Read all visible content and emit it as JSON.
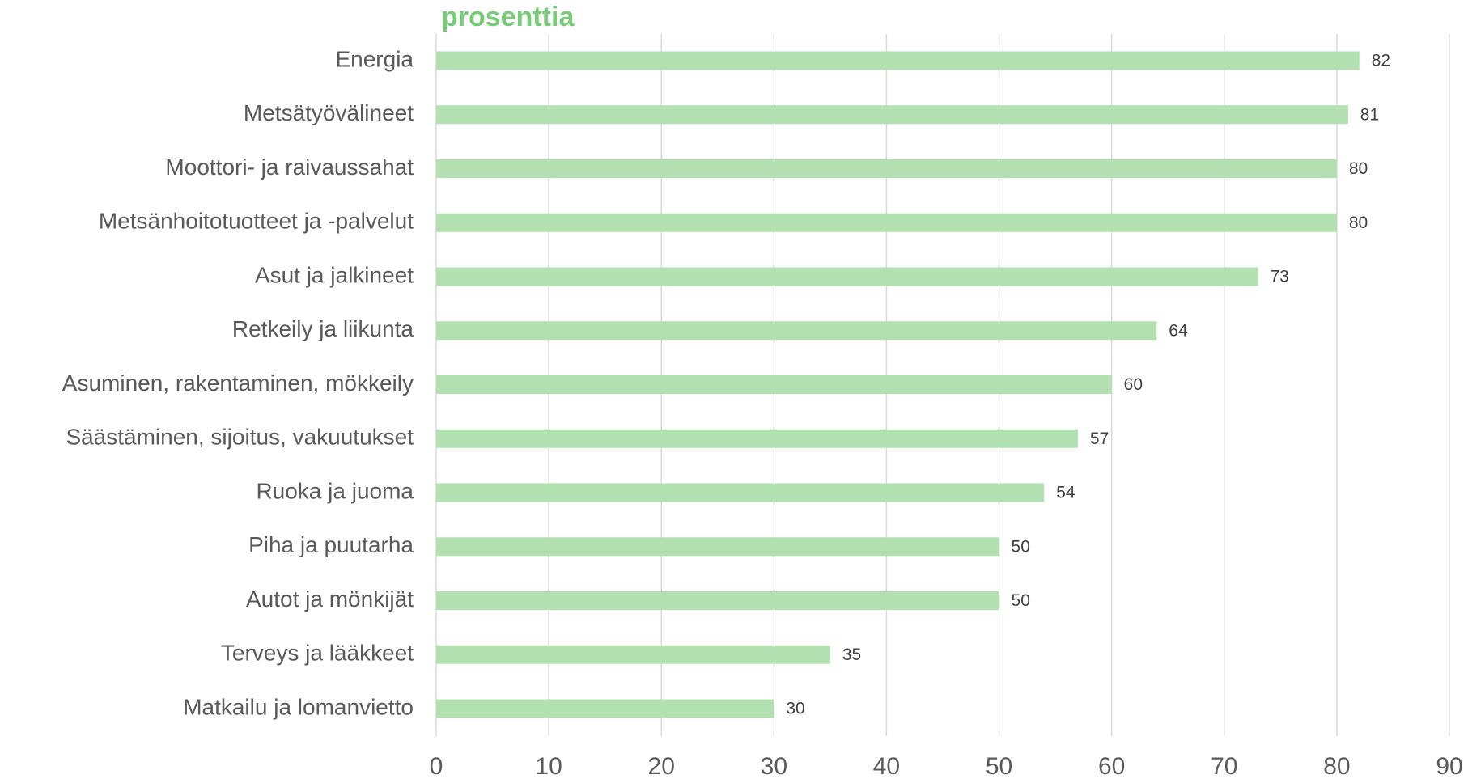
{
  "chart_data": {
    "type": "bar",
    "orientation": "horizontal",
    "title": "prosenttia",
    "categories": [
      "Energia",
      "Metsätyövälineet",
      "Moottori- ja raivaussahat",
      "Metsänhoitotuotteet ja -palvelut",
      "Asut ja jalkineet",
      "Retkeily ja liikunta",
      "Asuminen, rakentaminen, mökkeily",
      "Säästäminen, sijoitus, vakuutukset",
      "Ruoka ja juoma",
      "Piha ja puutarha",
      "Autot ja mönkijät",
      "Terveys ja lääkkeet",
      "Matkailu ja lomanvietto"
    ],
    "values": [
      82,
      81,
      80,
      80,
      73,
      64,
      60,
      57,
      54,
      50,
      50,
      35,
      30
    ],
    "color": "#b2e0b0",
    "xlim": [
      0,
      90
    ],
    "xticks": [
      0,
      10,
      20,
      30,
      40,
      50,
      60,
      70,
      80,
      90
    ],
    "grid": true
  }
}
